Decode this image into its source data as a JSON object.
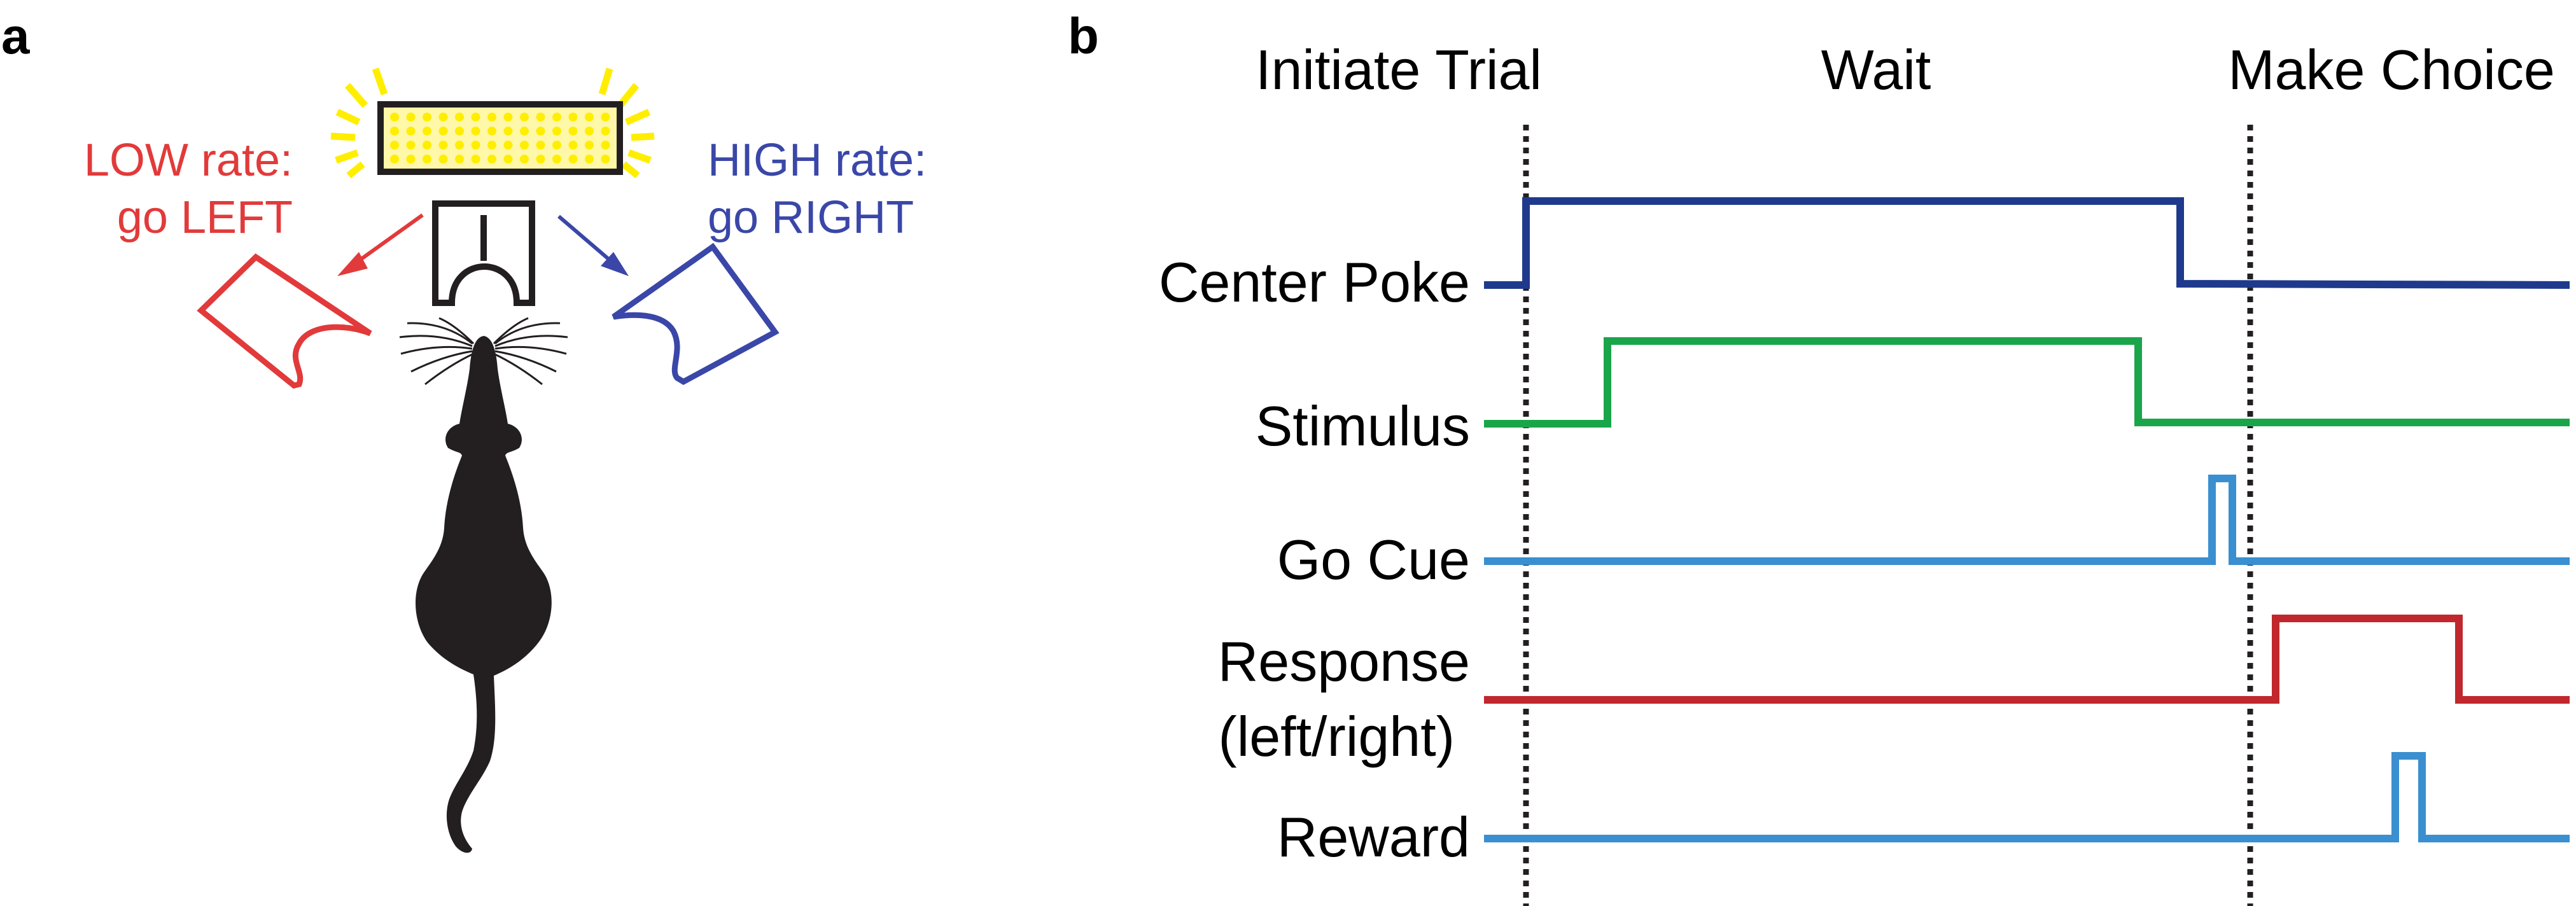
{
  "panel_a": {
    "panel_letter": "a",
    "left_label": {
      "line1": "LOW rate:",
      "line2": "go LEFT"
    },
    "right_label": {
      "line1": "HIGH rate:",
      "line2": "go RIGHT"
    }
  },
  "panel_b": {
    "panel_letter": "b",
    "phases": [
      "Initiate Trial",
      "Wait",
      "Make Choice"
    ],
    "traces": [
      {
        "name": "Center Poke",
        "color": "#1f3a8c"
      },
      {
        "name": "Stimulus",
        "color": "#1aa54b"
      },
      {
        "name": "Go Cue",
        "color": "#3a8fd0"
      },
      {
        "name": "Response",
        "subname": "(left/right)",
        "color": "#c0282d"
      },
      {
        "name": "Reward",
        "color": "#3a8fd0"
      }
    ]
  },
  "colors": {
    "low_rate": "#e23a3a",
    "high_rate": "#3a47a8",
    "flash_yellow": "#ffee00",
    "ink": "#231f20"
  }
}
